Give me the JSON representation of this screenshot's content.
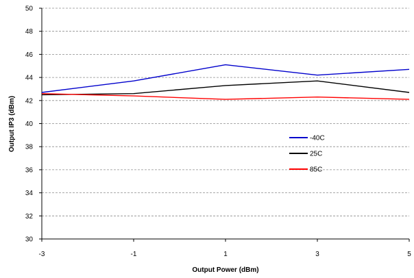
{
  "chart_data": {
    "type": "line",
    "title": "",
    "xlabel": "Output Power (dBm)",
    "ylabel": "Output IP3 (dBm)",
    "xlim": [
      -3,
      5
    ],
    "ylim": [
      30,
      50
    ],
    "x_ticks": [
      -3,
      -1,
      1,
      3,
      5
    ],
    "y_ticks": [
      30,
      32,
      34,
      36,
      38,
      40,
      42,
      44,
      46,
      48,
      50
    ],
    "x": [
      -3,
      -1,
      1,
      3,
      5
    ],
    "grid": "horizontal dashed",
    "legend_position": "center-right",
    "series": [
      {
        "name": "-40C",
        "color": "#0000cc",
        "values": [
          42.7,
          43.7,
          45.1,
          44.2,
          44.7
        ]
      },
      {
        "name": "25C",
        "color": "#000000",
        "values": [
          42.5,
          42.6,
          43.3,
          43.7,
          42.7
        ]
      },
      {
        "name": "85C",
        "color": "#ff0000",
        "values": [
          42.6,
          42.4,
          42.1,
          42.3,
          42.1
        ]
      }
    ]
  }
}
